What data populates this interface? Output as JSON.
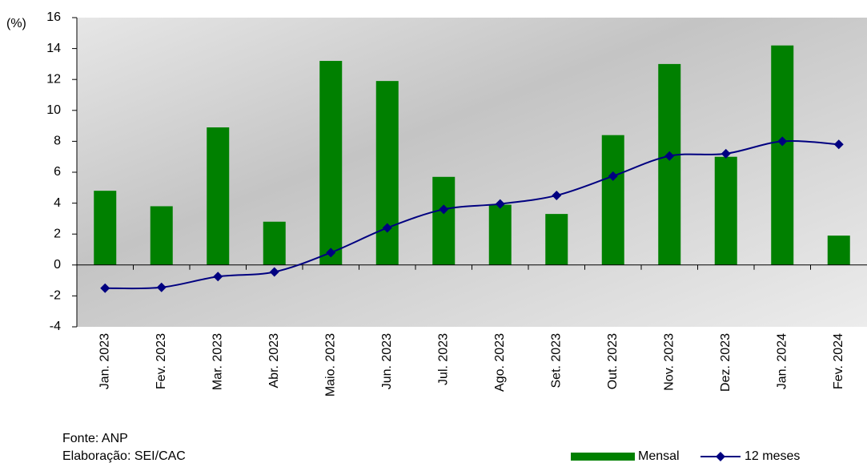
{
  "chart_data": {
    "type": "bar-line",
    "y_label": "(%)",
    "categories": [
      "Jan. 2023",
      "Fev. 2023",
      "Mar. 2023",
      "Abr. 2023",
      "Maio. 2023",
      "Jun. 2023",
      "Jul. 2023",
      "Ago. 2023",
      "Set. 2023",
      "Out. 2023",
      "Nov. 2023",
      "Dez. 2023",
      "Jan. 2024",
      "Fev. 2024"
    ],
    "series": [
      {
        "name": "Mensal",
        "type": "bar",
        "color": "#008000",
        "values": [
          4.8,
          3.8,
          8.9,
          2.8,
          13.2,
          11.9,
          5.7,
          3.9,
          3.3,
          8.4,
          13.0,
          7.0,
          14.2,
          1.9
        ]
      },
      {
        "name": "12 meses",
        "type": "line",
        "color": "#000080",
        "values": [
          -1.5,
          -1.45,
          -0.75,
          -0.45,
          0.8,
          2.4,
          3.6,
          3.95,
          4.5,
          5.75,
          7.05,
          7.2,
          8.0,
          7.8
        ]
      }
    ],
    "ylim": [
      -4,
      16
    ],
    "yticks": [
      -4,
      -2,
      0,
      2,
      4,
      6,
      8,
      10,
      12,
      14,
      16
    ],
    "source": "Fonte: ANP",
    "credit": "Elaboração: SEI/CAC"
  }
}
